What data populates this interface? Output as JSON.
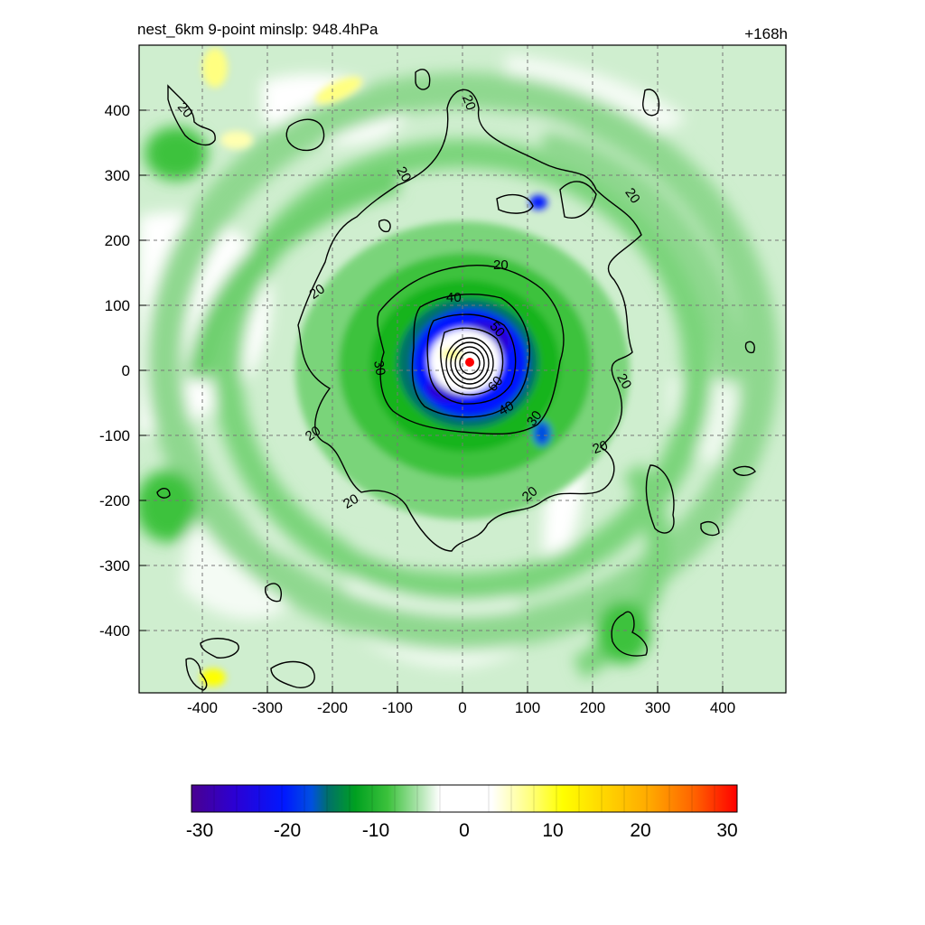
{
  "title_left": "nest_6km  9-point minslp: 948.4hPa",
  "title_right": "+168h",
  "x_ticks": [
    "-400",
    "-300",
    "-200",
    "-100",
    "0",
    "100",
    "200",
    "300",
    "400"
  ],
  "y_ticks": [
    "400",
    "300",
    "200",
    "100",
    "0",
    "-100",
    "-200",
    "-300",
    "-400"
  ],
  "colorbar": {
    "ticks": [
      "-30",
      "-20",
      "-10",
      "0",
      "10",
      "20",
      "30"
    ],
    "range": [
      -30,
      30
    ],
    "colors": {
      "n30": "#4a0090",
      "n25": "#2b00d4",
      "n20": "#0018ff",
      "n17": "#0050e0",
      "n15": "#00706a",
      "n12": "#00a020",
      "n10": "#14b41e",
      "n8": "#3cc23c",
      "n6": "#7ad47a",
      "n4": "#b4e6b4",
      "n2": "#dff4df",
      "zero": "#ffffff",
      "p2": "#ffffd0",
      "p5": "#ffff80",
      "p10": "#ffff00",
      "p15": "#ffd400",
      "p20": "#ffa800",
      "p25": "#ff6400",
      "p30": "#ff0000"
    }
  },
  "contours": {
    "labels": [
      "20",
      "20",
      "20",
      "20",
      "20",
      "20",
      "20",
      "20",
      "20",
      "20",
      "20",
      "30",
      "30",
      "30",
      "40",
      "40",
      "50",
      "60"
    ]
  },
  "storm_center": {
    "x_km": 10,
    "y_km": 12,
    "marker_color": "#ff0000"
  },
  "grid": true
}
